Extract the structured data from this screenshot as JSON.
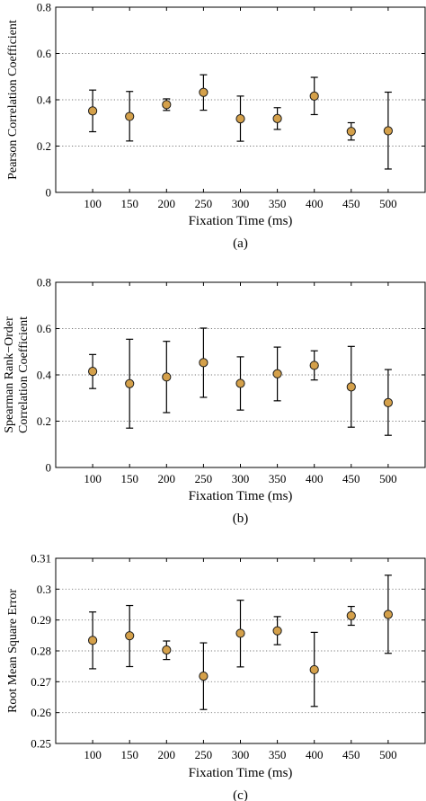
{
  "figure": {
    "marker_fill": "#d4a04a",
    "marker_stroke": "#1a1a1a",
    "grid_color": "#777777"
  },
  "chart_data": [
    {
      "type": "scatter",
      "panel_label": "(a)",
      "xlabel": "Fixation Time (ms)",
      "ylabel_lines": [
        "Pearson Correlation Coefficient"
      ],
      "categories": [
        "100",
        "150",
        "200",
        "250",
        "300",
        "350",
        "400",
        "450",
        "500"
      ],
      "xlim": [
        50,
        550
      ],
      "ylim": [
        0,
        0.8
      ],
      "yticks": [
        0,
        0.2,
        0.4,
        0.6,
        0.8
      ],
      "ytick_labels": [
        "0",
        "0.2",
        "0.4",
        "0.6",
        "0.8"
      ],
      "grid": "horizontal dotted",
      "series": [
        {
          "values": [
            0.352,
            0.328,
            0.379,
            0.432,
            0.318,
            0.319,
            0.416,
            0.263,
            0.266
          ],
          "err_low": [
            0.262,
            0.222,
            0.354,
            0.355,
            0.221,
            0.272,
            0.336,
            0.226,
            0.101
          ],
          "err_high": [
            0.442,
            0.436,
            0.404,
            0.508,
            0.416,
            0.366,
            0.497,
            0.301,
            0.433
          ]
        }
      ]
    },
    {
      "type": "scatter",
      "panel_label": "(b)",
      "xlabel": "Fixation Time (ms)",
      "ylabel_lines": [
        "Spearman Rank−Order",
        "Correlation Coefficient"
      ],
      "categories": [
        "100",
        "150",
        "200",
        "250",
        "300",
        "350",
        "400",
        "450",
        "500"
      ],
      "xlim": [
        50,
        550
      ],
      "ylim": [
        0,
        0.8
      ],
      "yticks": [
        0,
        0.2,
        0.4,
        0.6,
        0.8
      ],
      "ytick_labels": [
        "0",
        "0.2",
        "0.4",
        "0.6",
        "0.8"
      ],
      "grid": "horizontal dotted",
      "series": [
        {
          "values": [
            0.415,
            0.362,
            0.391,
            0.453,
            0.363,
            0.405,
            0.441,
            0.348,
            0.28
          ],
          "err_low": [
            0.341,
            0.17,
            0.237,
            0.303,
            0.248,
            0.288,
            0.378,
            0.174,
            0.139
          ],
          "err_high": [
            0.488,
            0.554,
            0.545,
            0.602,
            0.478,
            0.52,
            0.504,
            0.523,
            0.423
          ]
        }
      ]
    },
    {
      "type": "scatter",
      "panel_label": "(c)",
      "xlabel": "Fixation Time (ms)",
      "ylabel_lines": [
        "Root Mean Square Error"
      ],
      "categories": [
        "100",
        "150",
        "200",
        "250",
        "300",
        "350",
        "400",
        "450",
        "500"
      ],
      "xlim": [
        50,
        550
      ],
      "ylim": [
        0.25,
        0.31
      ],
      "yticks": [
        0.25,
        0.26,
        0.27,
        0.28,
        0.29,
        0.3,
        0.31
      ],
      "ytick_labels": [
        "0.25",
        "0.26",
        "0.27",
        "0.28",
        "0.29",
        "0.3",
        "0.31"
      ],
      "grid": "horizontal dotted",
      "series": [
        {
          "values": [
            0.2834,
            0.2849,
            0.2803,
            0.2718,
            0.2857,
            0.2865,
            0.2739,
            0.2914,
            0.2918
          ],
          "err_low": [
            0.2742,
            0.2749,
            0.2772,
            0.261,
            0.2748,
            0.282,
            0.262,
            0.2883,
            0.2792
          ],
          "err_high": [
            0.2926,
            0.2947,
            0.2832,
            0.2826,
            0.2964,
            0.2911,
            0.286,
            0.2944,
            0.3045
          ]
        }
      ]
    }
  ]
}
